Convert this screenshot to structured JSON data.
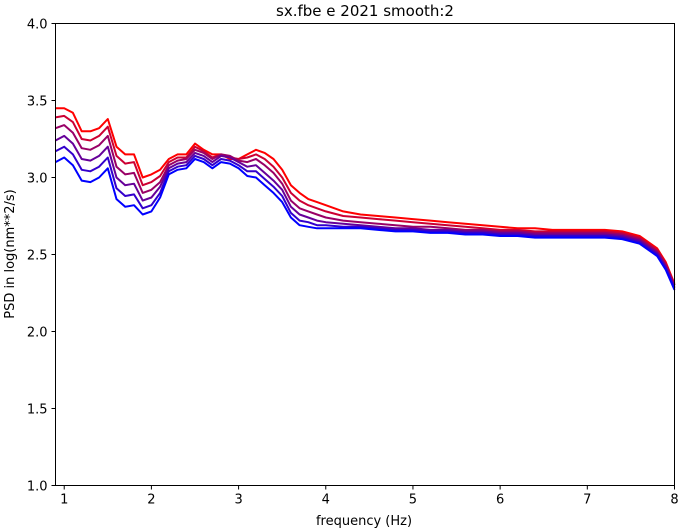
{
  "chart_data": {
    "type": "line",
    "title": "sx.fbe e 2021 smooth:2",
    "xlabel": "frequency (Hz)",
    "ylabel": "PSD in log(nm**2/s)",
    "xlim": [
      0.9,
      8.0
    ],
    "ylim": [
      1.0,
      4.0
    ],
    "xticks": [
      "1",
      "2",
      "3",
      "4",
      "5",
      "6",
      "7",
      "8"
    ],
    "yticks": [
      "1.0",
      "1.5",
      "2.0",
      "2.5",
      "3.0",
      "3.5",
      "4.0"
    ],
    "grid": false,
    "legend": "none",
    "x": [
      0.9,
      1.0,
      1.1,
      1.2,
      1.3,
      1.4,
      1.5,
      1.6,
      1.7,
      1.8,
      1.9,
      2.0,
      2.1,
      2.2,
      2.3,
      2.4,
      2.5,
      2.6,
      2.7,
      2.8,
      2.9,
      3.0,
      3.1,
      3.2,
      3.3,
      3.4,
      3.5,
      3.6,
      3.7,
      3.8,
      3.9,
      4.0,
      4.2,
      4.4,
      4.6,
      4.8,
      5.0,
      5.2,
      5.4,
      5.6,
      5.8,
      6.0,
      6.2,
      6.4,
      6.6,
      6.8,
      7.0,
      7.2,
      7.4,
      7.6,
      7.8,
      7.9,
      8.0
    ],
    "series": [
      {
        "color": "#ff0000",
        "values": [
          3.45,
          3.45,
          3.42,
          3.3,
          3.3,
          3.32,
          3.38,
          3.2,
          3.15,
          3.15,
          3.0,
          3.02,
          3.05,
          3.12,
          3.15,
          3.15,
          3.22,
          3.18,
          3.15,
          3.15,
          3.12,
          3.12,
          3.15,
          3.18,
          3.16,
          3.12,
          3.05,
          2.95,
          2.9,
          2.86,
          2.84,
          2.82,
          2.78,
          2.76,
          2.75,
          2.74,
          2.73,
          2.72,
          2.71,
          2.7,
          2.69,
          2.68,
          2.67,
          2.67,
          2.66,
          2.66,
          2.66,
          2.66,
          2.65,
          2.62,
          2.54,
          2.45,
          2.31
        ]
      },
      {
        "color": "#cc0033",
        "values": [
          3.39,
          3.4,
          3.36,
          3.25,
          3.24,
          3.27,
          3.33,
          3.14,
          3.09,
          3.1,
          2.95,
          2.97,
          3.01,
          3.1,
          3.13,
          3.13,
          3.2,
          3.17,
          3.13,
          3.15,
          3.13,
          3.12,
          3.13,
          3.15,
          3.12,
          3.07,
          3.0,
          2.9,
          2.85,
          2.82,
          2.8,
          2.78,
          2.75,
          2.74,
          2.73,
          2.72,
          2.71,
          2.7,
          2.69,
          2.68,
          2.67,
          2.66,
          2.66,
          2.65,
          2.65,
          2.65,
          2.65,
          2.65,
          2.64,
          2.61,
          2.53,
          2.44,
          2.3
        ]
      },
      {
        "color": "#990066",
        "values": [
          3.32,
          3.34,
          3.29,
          3.19,
          3.18,
          3.21,
          3.27,
          3.07,
          3.02,
          3.03,
          2.9,
          2.92,
          2.97,
          3.08,
          3.11,
          3.12,
          3.18,
          3.16,
          3.12,
          3.15,
          3.14,
          3.11,
          3.1,
          3.12,
          3.08,
          3.03,
          2.96,
          2.85,
          2.8,
          2.78,
          2.76,
          2.74,
          2.72,
          2.71,
          2.7,
          2.69,
          2.68,
          2.68,
          2.67,
          2.66,
          2.66,
          2.65,
          2.65,
          2.64,
          2.64,
          2.64,
          2.64,
          2.64,
          2.63,
          2.6,
          2.52,
          2.43,
          2.3
        ]
      },
      {
        "color": "#660099",
        "values": [
          3.24,
          3.27,
          3.22,
          3.12,
          3.11,
          3.14,
          3.2,
          3.0,
          2.95,
          2.96,
          2.85,
          2.87,
          2.94,
          3.06,
          3.09,
          3.1,
          3.16,
          3.14,
          3.1,
          3.14,
          3.13,
          3.1,
          3.07,
          3.08,
          3.03,
          2.98,
          2.92,
          2.81,
          2.76,
          2.74,
          2.72,
          2.71,
          2.7,
          2.69,
          2.68,
          2.67,
          2.67,
          2.66,
          2.66,
          2.65,
          2.65,
          2.64,
          2.64,
          2.63,
          2.63,
          2.63,
          2.63,
          2.63,
          2.62,
          2.59,
          2.51,
          2.42,
          2.29
        ]
      },
      {
        "color": "#3300cc",
        "values": [
          3.17,
          3.2,
          3.15,
          3.05,
          3.04,
          3.07,
          3.13,
          2.93,
          2.88,
          2.89,
          2.8,
          2.82,
          2.9,
          3.04,
          3.07,
          3.08,
          3.14,
          3.12,
          3.08,
          3.12,
          3.11,
          3.08,
          3.04,
          3.04,
          2.99,
          2.94,
          2.88,
          2.77,
          2.72,
          2.71,
          2.69,
          2.69,
          2.68,
          2.68,
          2.67,
          2.66,
          2.66,
          2.65,
          2.65,
          2.64,
          2.64,
          2.63,
          2.63,
          2.62,
          2.62,
          2.62,
          2.62,
          2.62,
          2.61,
          2.58,
          2.5,
          2.41,
          2.28
        ]
      },
      {
        "color": "#0000ff",
        "values": [
          3.1,
          3.13,
          3.08,
          2.98,
          2.97,
          3.0,
          3.06,
          2.86,
          2.81,
          2.82,
          2.76,
          2.78,
          2.87,
          3.02,
          3.05,
          3.06,
          3.12,
          3.1,
          3.06,
          3.1,
          3.09,
          3.06,
          3.01,
          3.0,
          2.95,
          2.9,
          2.84,
          2.74,
          2.69,
          2.68,
          2.67,
          2.67,
          2.67,
          2.67,
          2.66,
          2.65,
          2.65,
          2.64,
          2.64,
          2.63,
          2.63,
          2.62,
          2.62,
          2.61,
          2.61,
          2.61,
          2.61,
          2.61,
          2.6,
          2.57,
          2.49,
          2.4,
          2.27
        ]
      }
    ]
  }
}
